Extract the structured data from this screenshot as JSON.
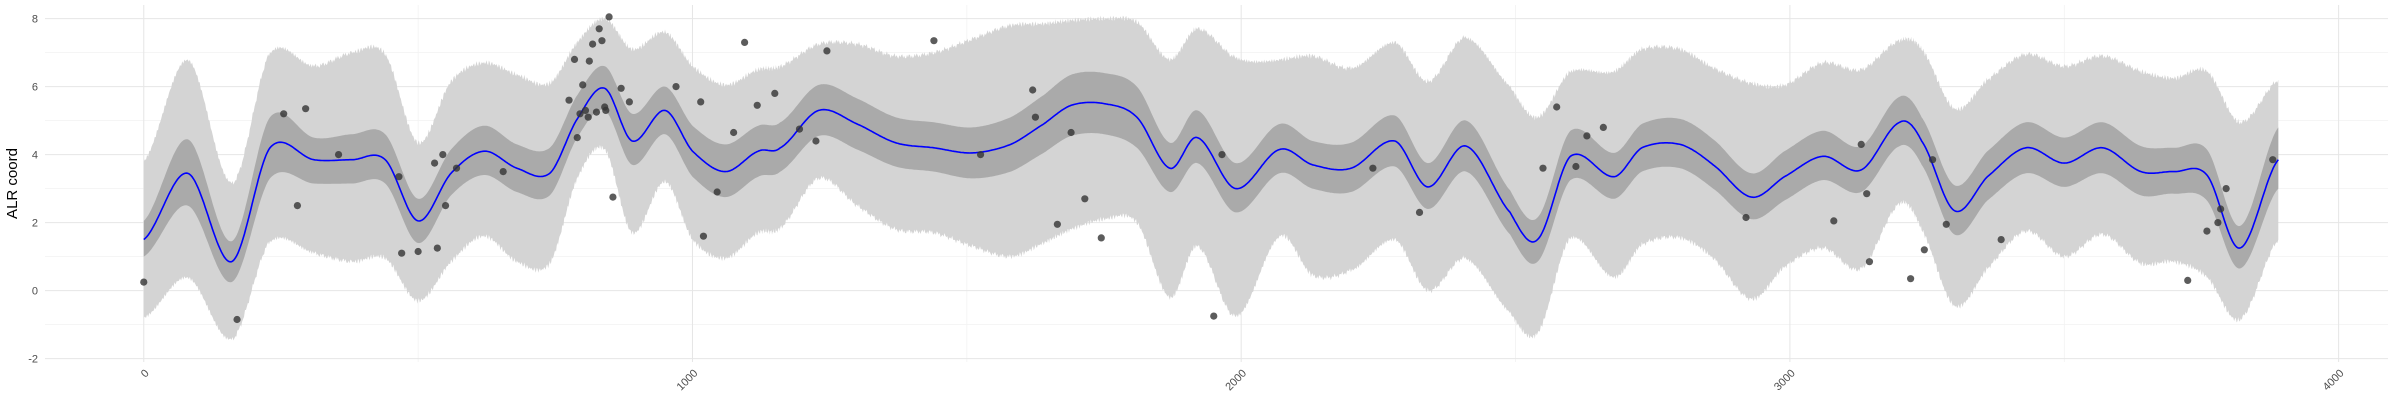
{
  "chart_data": {
    "type": "line",
    "title": "",
    "xlabel": "",
    "ylabel": "ALR coord",
    "xlim": [
      -180,
      4090
    ],
    "ylim": [
      -2.1,
      8.4
    ],
    "x_ticks": [
      0,
      1000,
      2000,
      3000,
      4000
    ],
    "x_tick_labels": [
      "0",
      "1000",
      "2000",
      "3000",
      "4000"
    ],
    "y_ticks": [
      -2,
      0,
      2,
      4,
      6,
      8
    ],
    "y_tick_labels": [
      "-2",
      "0",
      "2",
      "4",
      "6",
      "8"
    ],
    "grid": true,
    "legend": "none",
    "colors": {
      "mean_line": "#0000ff",
      "inner_band": "#aaaaaa",
      "outer_band": "#d4d4d4",
      "points": "#333333"
    },
    "mean_curve": {
      "x": [
        0,
        80,
        160,
        230,
        310,
        380,
        440,
        500,
        560,
        620,
        680,
        740,
        790,
        840,
        890,
        950,
        1000,
        1060,
        1120,
        1160,
        1230,
        1300,
        1370,
        1440,
        1510,
        1580,
        1640,
        1690,
        1750,
        1810,
        1870,
        1920,
        1990,
        2070,
        2130,
        2200,
        2280,
        2340,
        2410,
        2490,
        2540,
        2600,
        2680,
        2730,
        2800,
        2860,
        2930,
        2990,
        3060,
        3130,
        3200,
        3240,
        3300,
        3360,
        3430,
        3500,
        3570,
        3640,
        3700,
        3760,
        3820,
        3890
      ],
      "y": [
        1.5,
        3.45,
        0.85,
        4.2,
        3.85,
        3.85,
        3.85,
        2.05,
        3.45,
        4.1,
        3.6,
        3.45,
        5.05,
        5.95,
        4.4,
        5.3,
        4.1,
        3.5,
        4.1,
        4.2,
        5.3,
        4.9,
        4.35,
        4.2,
        4.05,
        4.3,
        4.9,
        5.45,
        5.5,
        5.1,
        3.6,
        4.5,
        3.0,
        4.15,
        3.7,
        3.6,
        4.4,
        3.05,
        4.25,
        2.3,
        1.5,
        3.95,
        3.35,
        4.2,
        4.3,
        3.7,
        2.75,
        3.35,
        3.95,
        3.55,
        4.95,
        4.4,
        2.35,
        3.35,
        4.2,
        3.75,
        4.2,
        3.5,
        3.5,
        3.4,
        1.25,
        3.85
      ]
    },
    "inner_band": {
      "lower": [
        1.0,
        2.5,
        0.25,
        3.3,
        3.15,
        3.15,
        3.15,
        1.4,
        2.8,
        3.4,
        2.9,
        2.8,
        4.5,
        5.3,
        3.7,
        4.6,
        3.35,
        2.75,
        3.35,
        3.5,
        4.55,
        4.15,
        3.65,
        3.5,
        3.3,
        3.5,
        4.05,
        4.55,
        4.6,
        4.2,
        2.9,
        3.75,
        2.3,
        3.45,
        3.0,
        2.9,
        3.65,
        2.4,
        3.5,
        1.65,
        0.85,
        3.25,
        2.7,
        3.5,
        3.6,
        3.0,
        2.1,
        2.65,
        3.25,
        2.9,
        4.25,
        3.7,
        1.65,
        2.65,
        3.45,
        3.05,
        3.45,
        2.8,
        2.85,
        2.65,
        0.65,
        3.0
      ],
      "upper": [
        2.05,
        4.45,
        1.45,
        5.1,
        4.5,
        4.6,
        4.6,
        2.7,
        4.15,
        4.85,
        4.3,
        4.2,
        5.75,
        6.6,
        5.2,
        6.0,
        4.85,
        4.3,
        4.85,
        4.95,
        6.05,
        5.65,
        5.1,
        4.95,
        4.8,
        5.1,
        5.75,
        6.35,
        6.4,
        6.0,
        4.35,
        5.3,
        3.75,
        4.9,
        4.4,
        4.35,
        5.15,
        3.75,
        5.0,
        2.95,
        2.15,
        4.7,
        4.05,
        4.9,
        5.05,
        4.45,
        3.45,
        4.1,
        4.7,
        4.25,
        5.7,
        5.1,
        3.1,
        4.1,
        4.95,
        4.5,
        4.95,
        4.25,
        4.2,
        4.15,
        1.9,
        4.8
      ]
    },
    "outer_band": {
      "lower": [
        -0.8,
        0.4,
        -1.45,
        1.45,
        1.1,
        0.85,
        0.95,
        -0.3,
        0.85,
        1.6,
        0.85,
        0.8,
        3.3,
        4.15,
        1.7,
        3.2,
        1.5,
        0.95,
        1.7,
        1.85,
        3.3,
        2.5,
        1.8,
        1.7,
        1.3,
        1.0,
        1.4,
        1.8,
        2.1,
        2.0,
        -0.2,
        1.3,
        -0.75,
        1.6,
        0.45,
        0.6,
        1.5,
        0.0,
        0.95,
        -0.65,
        -1.25,
        1.55,
        0.4,
        1.35,
        1.55,
        0.95,
        -0.25,
        0.7,
        1.25,
        0.65,
        2.55,
        1.8,
        -0.45,
        0.65,
        1.75,
        1.0,
        1.65,
        0.8,
        0.85,
        0.4,
        -0.85,
        1.5
      ],
      "upper": [
        3.8,
        6.8,
        3.15,
        7.0,
        6.6,
        7.0,
        6.95,
        4.35,
        6.15,
        6.7,
        6.35,
        6.1,
        7.3,
        8.0,
        7.1,
        7.6,
        6.6,
        6.05,
        6.5,
        6.6,
        7.25,
        7.25,
        6.9,
        7.0,
        7.4,
        7.8,
        7.85,
        7.95,
        8.0,
        7.9,
        6.8,
        7.7,
        6.85,
        6.8,
        6.9,
        6.55,
        7.3,
        6.15,
        7.45,
        6.0,
        5.1,
        6.45,
        6.45,
        7.1,
        7.1,
        6.55,
        6.1,
        6.05,
        6.7,
        6.5,
        7.35,
        7.1,
        5.35,
        6.2,
        6.95,
        6.6,
        6.9,
        6.45,
        6.25,
        6.45,
        4.95,
        6.2
      ]
    },
    "points": {
      "x": [
        0,
        170,
        255,
        280,
        295,
        355,
        465,
        470,
        500,
        530,
        535,
        545,
        550,
        570,
        655,
        775,
        785,
        790,
        795,
        800,
        805,
        810,
        812,
        818,
        825,
        830,
        835,
        840,
        842,
        848,
        855,
        870,
        885,
        970,
        1015,
        1020,
        1045,
        1075,
        1095,
        1118,
        1150,
        1195,
        1225,
        1245,
        1440,
        1525,
        1620,
        1625,
        1665,
        1690,
        1715,
        1745,
        1950,
        1965,
        2240,
        2325,
        2550,
        2575,
        2610,
        2630,
        2660,
        2920,
        3080,
        3130,
        3140,
        3145,
        3220,
        3245,
        3260,
        3285,
        3385,
        3725,
        3760,
        3780,
        3785,
        3795,
        3880
      ],
      "y": [
        0.25,
        -0.85,
        5.2,
        2.5,
        5.35,
        4.0,
        3.35,
        1.1,
        1.15,
        3.75,
        1.25,
        4.0,
        2.5,
        3.6,
        3.5,
        5.6,
        6.8,
        4.5,
        5.2,
        6.05,
        5.3,
        5.1,
        6.75,
        7.25,
        5.25,
        7.7,
        7.35,
        5.4,
        5.3,
        8.05,
        2.75,
        5.95,
        5.55,
        6.0,
        5.55,
        1.6,
        2.9,
        4.65,
        7.3,
        5.45,
        5.8,
        4.75,
        4.4,
        7.05,
        7.35,
        4.0,
        5.9,
        5.1,
        1.95,
        4.65,
        2.7,
        1.55,
        -0.75,
        4.0,
        3.6,
        2.3,
        3.6,
        5.4,
        3.65,
        4.55,
        4.8,
        2.15,
        2.05,
        4.3,
        2.85,
        0.85,
        0.35,
        1.2,
        3.85,
        1.95,
        1.5,
        0.3,
        1.75,
        2.0,
        2.4,
        3.0,
        3.85
      ]
    }
  }
}
